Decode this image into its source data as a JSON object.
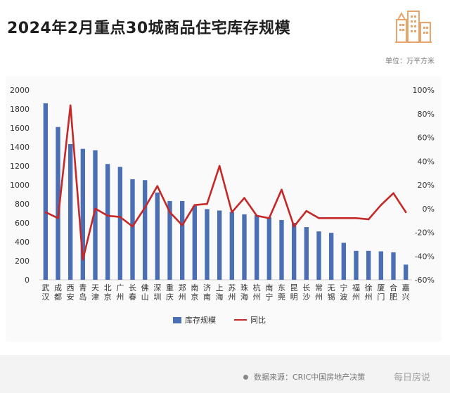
{
  "title": "2024年2月重点30城商品住宅库存规模",
  "unit": "单位：万平方米",
  "source": "数据来源：CRIC中国房地产决策",
  "watermark": "每日房说",
  "colors": {
    "bar": "#4a6fb5",
    "line": "#c62828",
    "logo": "#e8a56b"
  },
  "legend": {
    "bar": "库存规模",
    "line": "同比"
  },
  "chart_data": {
    "type": "bar",
    "title": "2024年2月重点30城商品住宅库存规模",
    "categories": [
      "武汉",
      "成都",
      "西安",
      "青岛",
      "天津",
      "北京",
      "广州",
      "长春",
      "佛山",
      "深圳",
      "重庆",
      "郑州",
      "南京",
      "济南",
      "上海",
      "苏州",
      "珠海",
      "杭州",
      "南宁",
      "东莞",
      "昆明",
      "长沙",
      "常州",
      "无锡",
      "宁波",
      "福州",
      "徐州",
      "厦门",
      "合肥",
      "嘉兴"
    ],
    "y_ticks": [
      0,
      200,
      400,
      600,
      800,
      1000,
      1200,
      1400,
      1600,
      1800,
      2000
    ],
    "y2_ticks": [
      "-60%",
      "-40%",
      "-20%",
      "0%",
      "20%",
      "40%",
      "60%",
      "80%",
      "100%"
    ],
    "ylim": [
      0,
      2000
    ],
    "y2lim": [
      -60,
      100
    ],
    "grid": false,
    "legend_position": "bottom",
    "series": [
      {
        "name": "库存规模",
        "type": "bar",
        "values": [
          1860,
          1610,
          1430,
          1380,
          1365,
          1220,
          1190,
          1060,
          1050,
          920,
          830,
          830,
          780,
          745,
          730,
          715,
          690,
          680,
          660,
          630,
          600,
          555,
          510,
          495,
          390,
          305,
          305,
          300,
          290,
          160
        ]
      },
      {
        "name": "同比",
        "type": "line",
        "values": [
          -3,
          -8,
          87,
          -43,
          0,
          -6,
          -7,
          -15,
          1,
          19,
          -3,
          -14,
          3,
          4,
          36,
          -3,
          9,
          -6,
          -8,
          16,
          -15,
          -2,
          -8,
          -8,
          -8,
          -8,
          -9,
          3,
          13,
          -3
        ]
      }
    ]
  }
}
